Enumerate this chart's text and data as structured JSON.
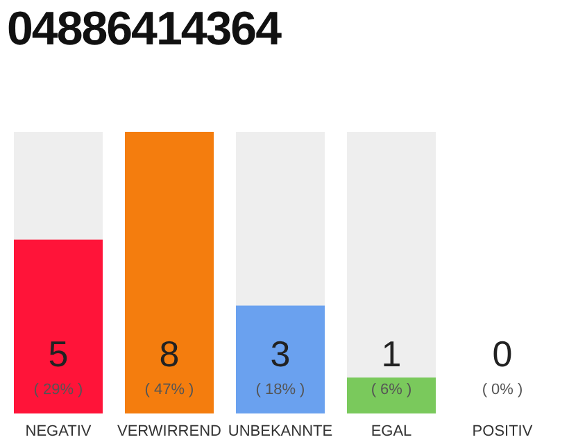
{
  "chart_data": {
    "type": "bar",
    "title": "04886414364",
    "categories": [
      "NEGATIV",
      "VERWIRREND",
      "UNBEKANNTE",
      "EGAL",
      "POSITIV"
    ],
    "values": [
      29,
      47,
      18,
      6,
      0
    ],
    "colors": [
      "#ff1439",
      "#f47d0e",
      "#6aa1ef",
      "#7ac95c",
      "#eeeeee"
    ],
    "value_labels": [
      "( 29% )",
      "( 47% )",
      "( 18% )",
      "( 6% )",
      "( 0% )"
    ],
    "annotations": [
      "5",
      "8",
      "3",
      "1",
      "0"
    ]
  }
}
